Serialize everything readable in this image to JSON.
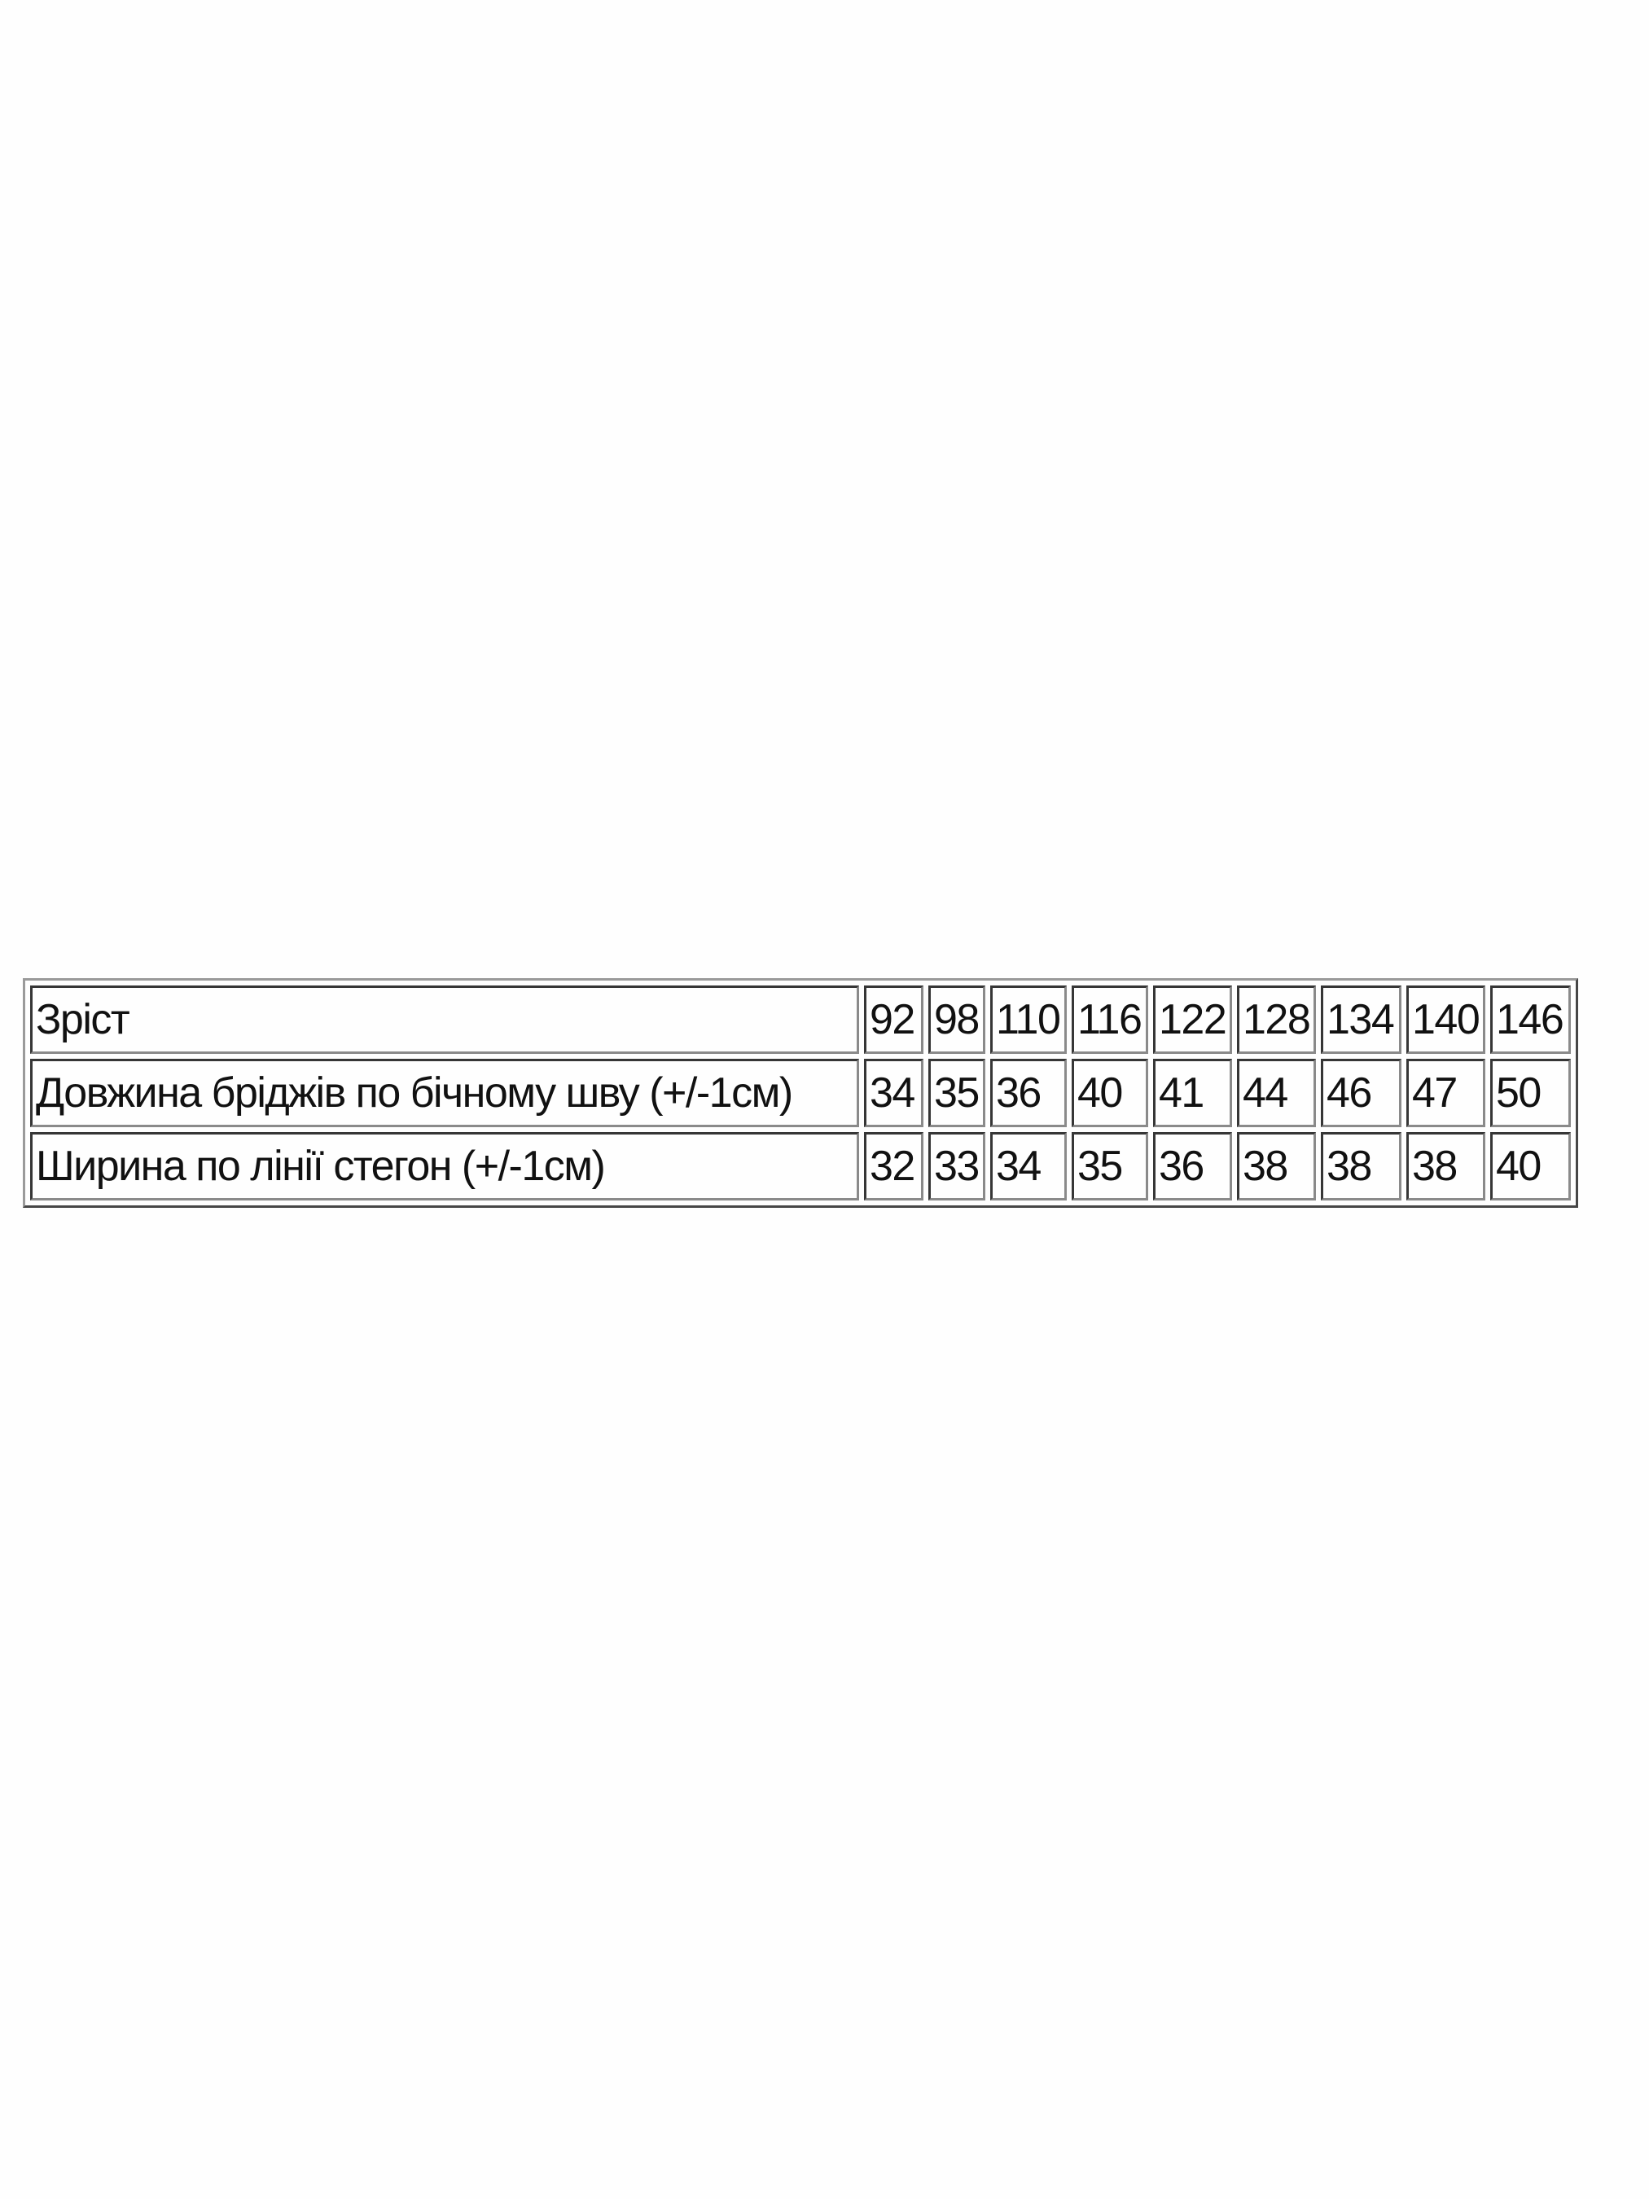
{
  "table": {
    "rows": [
      {
        "label": "Зріст",
        "values": [
          "92",
          "98",
          "110",
          "116",
          "122",
          "128",
          "134",
          "140",
          "146"
        ]
      },
      {
        "label": "Довжина бріджів по бічному шву (+/-1см)",
        "values": [
          "34",
          "35",
          "36",
          "40",
          "41",
          "44",
          "46",
          "47",
          "50"
        ]
      },
      {
        "label": "Ширина по лінії стегон (+/-1см)",
        "values": [
          "32",
          "33",
          "34",
          "35",
          "36",
          "38",
          "38",
          "38",
          "40"
        ]
      }
    ]
  }
}
